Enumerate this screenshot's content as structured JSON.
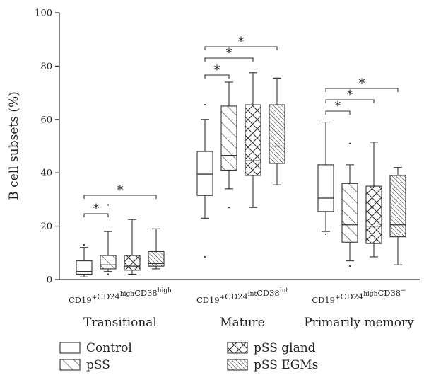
{
  "chart_data": {
    "type": "box",
    "ylabel": "B cell subsets (%)",
    "ylim": [
      0,
      100
    ],
    "yticks": [
      "0",
      "20",
      "40",
      "60",
      "80",
      "100"
    ],
    "groups": [
      {
        "label": "Transitional",
        "marker": {
          "base": "CD19",
          "sup1": "+",
          "mid": "CD24",
          "sup2": "high",
          "end": "CD38",
          "sup3": "high"
        },
        "boxes": [
          {
            "series": "Control",
            "whisker_low": 1,
            "q1": 2,
            "median": 3,
            "q3": 7,
            "whisker_high": 12,
            "outliers": [
              13
            ]
          },
          {
            "series": "pSS",
            "whisker_low": 3,
            "q1": 4,
            "median": 5.5,
            "q3": 9,
            "whisker_high": 18,
            "outliers": [
              28,
              2
            ]
          },
          {
            "series": "pSS gland",
            "whisker_low": 2,
            "q1": 3.5,
            "median": 5,
            "q3": 9,
            "whisker_high": 22.5,
            "outliers": []
          },
          {
            "series": "pSS EGMs",
            "whisker_low": 4,
            "q1": 5,
            "median": 6,
            "q3": 10.5,
            "whisker_high": 19,
            "outliers": []
          }
        ],
        "significance": [
          {
            "from": 0,
            "to": 1,
            "label": "*"
          },
          {
            "from": 0,
            "to": 3,
            "label": "*"
          }
        ]
      },
      {
        "label": "Mature",
        "marker": {
          "base": "CD19",
          "sup1": "+",
          "mid": "CD24",
          "sup2": "int",
          "end": "CD38",
          "sup3": "int"
        },
        "boxes": [
          {
            "series": "Control",
            "whisker_low": 23,
            "q1": 31.5,
            "median": 39.5,
            "q3": 48,
            "whisker_high": 60,
            "outliers": [
              65.5,
              8.5
            ]
          },
          {
            "series": "pSS",
            "whisker_low": 34,
            "q1": 41,
            "median": 46.5,
            "q3": 65,
            "whisker_high": 74,
            "outliers": [
              27
            ]
          },
          {
            "series": "pSS gland",
            "whisker_low": 27,
            "q1": 39,
            "median": 44.5,
            "q3": 65.5,
            "whisker_high": 77.5,
            "outliers": []
          },
          {
            "series": "pSS EGMs",
            "whisker_low": 35.5,
            "q1": 43.5,
            "median": 50,
            "q3": 65.5,
            "whisker_high": 75.5,
            "outliers": []
          }
        ],
        "significance": [
          {
            "from": 0,
            "to": 1,
            "label": "*"
          },
          {
            "from": 0,
            "to": 2,
            "label": "*"
          },
          {
            "from": 0,
            "to": 3,
            "label": "*"
          }
        ]
      },
      {
        "label": "Primarily memory",
        "marker": {
          "base": "CD19",
          "sup1": "+",
          "mid": "CD24",
          "sup2": "high",
          "end": "CD38",
          "sup3": "−"
        },
        "boxes": [
          {
            "series": "Control",
            "whisker_low": 18,
            "q1": 25.5,
            "median": 30.5,
            "q3": 43,
            "whisker_high": 59,
            "outliers": [
              17
            ]
          },
          {
            "series": "pSS",
            "whisker_low": 7,
            "q1": 14,
            "median": 20.5,
            "q3": 36,
            "whisker_high": 43,
            "outliers": [
              51,
              5
            ]
          },
          {
            "series": "pSS gland",
            "whisker_low": 8.5,
            "q1": 13.5,
            "median": 20,
            "q3": 35,
            "whisker_high": 51.5,
            "outliers": []
          },
          {
            "series": "pSS EGMs",
            "whisker_low": 5.5,
            "q1": 16,
            "median": 20.5,
            "q3": 39,
            "whisker_high": 42,
            "outliers": []
          }
        ],
        "significance": [
          {
            "from": 0,
            "to": 1,
            "label": "*"
          },
          {
            "from": 0,
            "to": 2,
            "label": "*"
          },
          {
            "from": 0,
            "to": 3,
            "label": "*"
          }
        ]
      }
    ],
    "legend": [
      {
        "name": "Control",
        "pattern": "none"
      },
      {
        "name": "pSS",
        "pattern": "diagonal"
      },
      {
        "name": "pSS gland",
        "pattern": "crosshatch"
      },
      {
        "name": "pSS EGMs",
        "pattern": "dense-diagonal"
      }
    ],
    "legend_position": "bottom"
  }
}
